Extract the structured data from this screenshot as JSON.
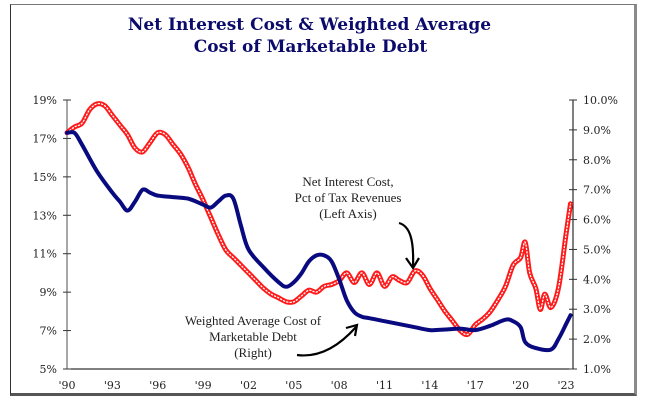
{
  "chart_data": {
    "type": "line",
    "title": "Net Interest Cost & Weighted Average Cost of Marketable Debt",
    "title_lines": [
      "Net Interest Cost & Weighted Average",
      "Cost of Marketable Debt"
    ],
    "xlabel": "",
    "x_ticks": [
      "'90",
      "'93",
      "'96",
      "'99",
      "'02",
      "'05",
      "'08",
      "'11",
      "'14",
      "'17",
      "'20",
      "'23"
    ],
    "x_tick_years": [
      1990,
      1993,
      1996,
      1999,
      2002,
      2005,
      2008,
      2011,
      2014,
      2017,
      2020,
      2023
    ],
    "xlim": [
      1990,
      2023.5
    ],
    "y_left": {
      "range": [
        5,
        19
      ],
      "ticks": [
        "5%",
        "7%",
        "9%",
        "11%",
        "13%",
        "15%",
        "17%",
        "19%"
      ],
      "tick_values": [
        5,
        7,
        9,
        11,
        13,
        15,
        17,
        19
      ]
    },
    "y_right": {
      "range": [
        1,
        10
      ],
      "ticks": [
        "1.0%",
        "2.0%",
        "3.0%",
        "4.0%",
        "5.0%",
        "6.0%",
        "7.0%",
        "8.0%",
        "9.0%",
        "10.0%"
      ],
      "tick_values": [
        1,
        2,
        3,
        4,
        5,
        6,
        7,
        8,
        9,
        10
      ]
    },
    "grid": false,
    "series": [
      {
        "name": "Net Interest Cost, Pct of Tax Revenues (Left Axis)",
        "axis": "left",
        "color": "#ff1a1a",
        "style": "dotted-thick",
        "x": [
          1990,
          1990.5,
          1991,
          1991.5,
          1992,
          1992.5,
          1993,
          1993.5,
          1994,
          1994.5,
          1995,
          1995.5,
          1996,
          1996.5,
          1997,
          1997.5,
          1998,
          1998.5,
          1999,
          1999.5,
          2000,
          2000.5,
          2001,
          2001.5,
          2002,
          2002.5,
          2003,
          2003.5,
          2004,
          2004.5,
          2005,
          2005.5,
          2006,
          2006.5,
          2007,
          2007.5,
          2008,
          2008.5,
          2009,
          2009.5,
          2010,
          2010.5,
          2011,
          2011.5,
          2012,
          2012.5,
          2013,
          2013.5,
          2014,
          2014.5,
          2015,
          2015.5,
          2016,
          2016.5,
          2017,
          2017.5,
          2018,
          2018.5,
          2019,
          2019.5,
          2020,
          2020.3,
          2020.6,
          2021,
          2021.3,
          2021.6,
          2022,
          2022.5,
          2023,
          2023.3
        ],
        "values": [
          17.3,
          17.6,
          17.8,
          18.5,
          18.8,
          18.7,
          18.2,
          17.7,
          17.2,
          16.5,
          16.3,
          16.8,
          17.3,
          17.2,
          16.7,
          16.2,
          15.5,
          14.6,
          13.8,
          12.9,
          12.0,
          11.2,
          10.8,
          10.4,
          10.0,
          9.6,
          9.2,
          8.9,
          8.7,
          8.5,
          8.5,
          8.8,
          9.1,
          9.0,
          9.3,
          9.4,
          9.6,
          10.0,
          9.5,
          10.0,
          9.4,
          10.0,
          9.3,
          9.8,
          9.6,
          9.5,
          10.1,
          9.9,
          9.2,
          8.6,
          8.0,
          7.5,
          7.0,
          6.8,
          7.3,
          7.6,
          8.0,
          8.6,
          9.3,
          10.4,
          10.8,
          11.6,
          10.0,
          9.2,
          8.1,
          8.9,
          8.2,
          9.2,
          12.0,
          13.6
        ]
      },
      {
        "name": "Weighted Average Cost of Marketable Debt (Right)",
        "axis": "right",
        "color": "#0a0a80",
        "style": "solid-thick",
        "x": [
          1990,
          1990.5,
          1991,
          1992,
          1993,
          1993.5,
          1994,
          1994.5,
          1995,
          1995.5,
          1996,
          1997,
          1998,
          1999,
          1999.5,
          2000,
          2000.5,
          2001,
          2001.5,
          2002,
          2003,
          2004,
          2004.5,
          2005,
          2005.5,
          2006,
          2006.5,
          2007,
          2007.5,
          2008,
          2008.5,
          2009,
          2009.5,
          2010,
          2011,
          2012,
          2013,
          2014,
          2015,
          2016,
          2017,
          2018,
          2019,
          2019.5,
          2020,
          2020.3,
          2021,
          2022,
          2022.5,
          2023,
          2023.3
        ],
        "values": [
          8.9,
          8.9,
          8.5,
          7.6,
          6.9,
          6.6,
          6.3,
          6.6,
          7.0,
          6.9,
          6.8,
          6.75,
          6.7,
          6.5,
          6.4,
          6.6,
          6.8,
          6.7,
          5.8,
          5.0,
          4.4,
          3.9,
          3.75,
          3.9,
          4.2,
          4.6,
          4.8,
          4.8,
          4.6,
          4.0,
          3.3,
          2.9,
          2.75,
          2.7,
          2.6,
          2.5,
          2.4,
          2.3,
          2.32,
          2.35,
          2.3,
          2.45,
          2.65,
          2.6,
          2.4,
          1.9,
          1.7,
          1.65,
          2.0,
          2.5,
          2.8
        ]
      }
    ],
    "annotations": [
      {
        "lines": [
          "Net Interest Cost,",
          "Pct of Tax Revenues",
          "(Left Axis)"
        ],
        "points_to": "red series near '13",
        "arrow": "down"
      },
      {
        "lines": [
          "Weighted Average Cost of",
          "Marketable Debt",
          "(Right)"
        ],
        "points_to": "blue series near '09",
        "arrow": "up-right"
      }
    ]
  }
}
